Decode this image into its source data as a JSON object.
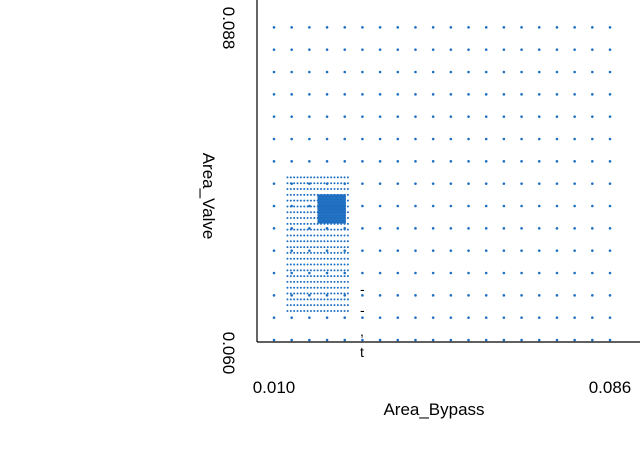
{
  "side_text": [
    "-",
    "-",
    ",",
    "t"
  ],
  "chart_data": {
    "type": "scatter",
    "title": "",
    "xlabel": "Area_Bypass",
    "ylabel": "Area_Valve",
    "xlim": [
      0.01,
      0.086
    ],
    "ylim": [
      0.06,
      0.09
    ],
    "x_tick_labels": [
      "0.010",
      "0.086"
    ],
    "y_tick_labels": [
      "0.060",
      "0.088"
    ],
    "grid": false,
    "marker_color": "#1f6fc1",
    "points_description": "sampled design points",
    "coarse_grid": {
      "x_start": 0.01,
      "x_step": 0.004,
      "x_count": 20,
      "y_start": 0.06,
      "y_step": 0.002,
      "y_count": 15
    },
    "medium_grid": {
      "x_start": 0.01304,
      "x_step": 0.00076,
      "x_count": 19,
      "y_start": 0.0626,
      "y_step": 0.00052,
      "y_count": 24
    },
    "fine_grid": {
      "x_start": 0.02,
      "x_step": 0.00021,
      "x_count": 30,
      "y_start": 0.0705,
      "y_step": 0.00013,
      "y_count": 20
    }
  }
}
